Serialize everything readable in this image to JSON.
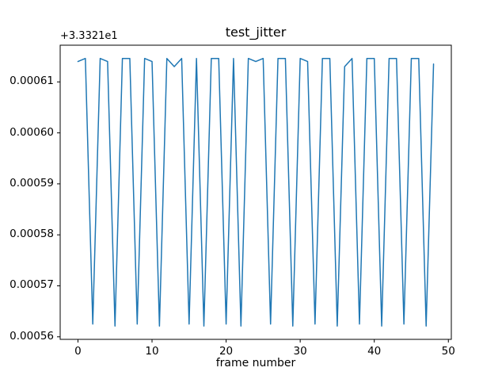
{
  "figure": {
    "title": "test_jitter",
    "xlabel": "frame number",
    "y_offset_text": "+3.3321e1"
  },
  "chart_data": {
    "type": "line",
    "title": "test_jitter",
    "xlabel": "frame number",
    "ylabel": "",
    "y_axis_offset_text": "+3.3321e1",
    "y_axis_offset_value": 33.321,
    "line_color": "#1f77b4",
    "line_width": 1.5,
    "grid": false,
    "legend": null,
    "xlim": [
      -2.4,
      50.4
    ],
    "ylim": [
      0.0005595,
      0.0006172
    ],
    "x_ticks": [
      0,
      10,
      20,
      30,
      40,
      50
    ],
    "x_tick_labels": [
      "0",
      "10",
      "20",
      "30",
      "40",
      "50"
    ],
    "y_ticks": [
      0.00056,
      0.00057,
      0.00058,
      0.00059,
      0.0006,
      0.00061
    ],
    "y_tick_labels": [
      "0.00056",
      "0.00057",
      "0.00058",
      "0.00059",
      "0.00060",
      "0.00061"
    ],
    "x": [
      0,
      1,
      2,
      3,
      4,
      5,
      6,
      7,
      8,
      9,
      10,
      11,
      12,
      13,
      14,
      15,
      16,
      17,
      18,
      19,
      20,
      21,
      22,
      23,
      24,
      25,
      26,
      27,
      28,
      29,
      30,
      31,
      32,
      33,
      34,
      35,
      36,
      37,
      38,
      39,
      40,
      41,
      42,
      43,
      44,
      45,
      46,
      47,
      48
    ],
    "y": [
      0.000614,
      0.0006146,
      0.0005625,
      0.0006146,
      0.000614,
      0.0005621,
      0.0006146,
      0.0006146,
      0.0005625,
      0.0006146,
      0.000614,
      0.0005621,
      0.0006146,
      0.000613,
      0.0006146,
      0.0005625,
      0.0006146,
      0.0005621,
      0.0006146,
      0.0006146,
      0.0005625,
      0.0006146,
      0.0005621,
      0.0006146,
      0.000614,
      0.0006146,
      0.0005625,
      0.0006146,
      0.0006146,
      0.0005621,
      0.0006146,
      0.000614,
      0.0005625,
      0.0006146,
      0.0006146,
      0.0005621,
      0.000613,
      0.0006146,
      0.0005625,
      0.0006146,
      0.0006146,
      0.0005621,
      0.0006146,
      0.0006146,
      0.0005625,
      0.0006146,
      0.0006146,
      0.0005621,
      0.0006135
    ]
  }
}
